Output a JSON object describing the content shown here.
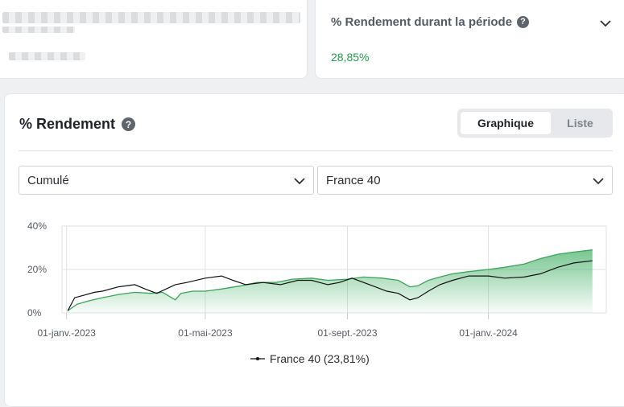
{
  "summary": {
    "title": "% Rendement durant la période",
    "value": "28,85%"
  },
  "main": {
    "title": "% Rendement",
    "tabs": [
      {
        "label": "Graphique",
        "active": true
      },
      {
        "label": "Liste",
        "active": false
      }
    ],
    "mode_select": {
      "value": "Cumulé"
    },
    "index_select": {
      "value": "France 40"
    }
  },
  "colors": {
    "accent_green": "#1e9c4b",
    "portfolio_line": "#3aa559",
    "index_line": "#111111"
  },
  "icons": {
    "help": "help-icon",
    "chevron": "chevron-down-icon"
  },
  "chart_data": {
    "type": "line",
    "y_ticks": [
      "40%",
      "20%",
      "0%"
    ],
    "ylim": [
      0,
      40
    ],
    "x_ticks": [
      "01-janv.-2023",
      "01-mai-2023",
      "01-sept.-2023",
      "01-janv.-2024"
    ],
    "x_tick_dates": [
      "2023-01-01",
      "2023-05-01",
      "2023-09-01",
      "2024-01-01"
    ],
    "xlim": [
      "2022-12-28",
      "2024-04-12"
    ],
    "legend": "France 40 (23,81%)",
    "legend_position": "bottom",
    "grid": true,
    "series": [
      {
        "name": "",
        "style": "area",
        "points": [
          [
            "2023-01-02",
            1
          ],
          [
            "2023-01-10",
            4
          ],
          [
            "2023-01-20",
            5.5
          ],
          [
            "2023-02-01",
            7
          ],
          [
            "2023-02-15",
            8.5
          ],
          [
            "2023-03-01",
            9.5
          ],
          [
            "2023-03-15",
            9
          ],
          [
            "2023-03-25",
            9.5
          ],
          [
            "2023-04-05",
            6
          ],
          [
            "2023-04-10",
            9
          ],
          [
            "2023-04-20",
            10
          ],
          [
            "2023-05-01",
            10
          ],
          [
            "2023-05-15",
            11
          ],
          [
            "2023-06-01",
            12.5
          ],
          [
            "2023-06-15",
            14
          ],
          [
            "2023-07-01",
            14
          ],
          [
            "2023-07-15",
            15.5
          ],
          [
            "2023-08-01",
            16
          ],
          [
            "2023-08-15",
            15
          ],
          [
            "2023-09-01",
            15.5
          ],
          [
            "2023-09-15",
            16.5
          ],
          [
            "2023-10-01",
            16
          ],
          [
            "2023-10-15",
            15
          ],
          [
            "2023-10-25",
            12
          ],
          [
            "2023-11-01",
            12.5
          ],
          [
            "2023-11-10",
            15
          ],
          [
            "2023-11-20",
            16.5
          ],
          [
            "2023-12-01",
            18
          ],
          [
            "2023-12-15",
            19
          ],
          [
            "2024-01-01",
            20
          ],
          [
            "2024-01-15",
            21
          ],
          [
            "2024-02-01",
            22.5
          ],
          [
            "2024-02-15",
            25
          ],
          [
            "2024-03-01",
            27
          ],
          [
            "2024-03-15",
            28
          ],
          [
            "2024-03-31",
            29
          ]
        ]
      },
      {
        "name": "France 40",
        "style": "line",
        "points": [
          [
            "2023-01-02",
            1
          ],
          [
            "2023-01-08",
            7
          ],
          [
            "2023-01-15",
            8
          ],
          [
            "2023-01-25",
            9.5
          ],
          [
            "2023-02-01",
            10
          ],
          [
            "2023-02-15",
            12
          ],
          [
            "2023-03-01",
            13
          ],
          [
            "2023-03-10",
            11
          ],
          [
            "2023-03-20",
            9
          ],
          [
            "2023-03-28",
            11
          ],
          [
            "2023-04-05",
            13
          ],
          [
            "2023-04-15",
            14
          ],
          [
            "2023-05-01",
            16
          ],
          [
            "2023-05-15",
            17
          ],
          [
            "2023-05-25",
            15
          ],
          [
            "2023-06-05",
            13
          ],
          [
            "2023-06-20",
            14
          ],
          [
            "2023-07-05",
            13
          ],
          [
            "2023-07-20",
            15
          ],
          [
            "2023-08-01",
            15
          ],
          [
            "2023-08-15",
            13
          ],
          [
            "2023-08-25",
            14
          ],
          [
            "2023-09-05",
            16
          ],
          [
            "2023-09-15",
            14
          ],
          [
            "2023-09-25",
            12
          ],
          [
            "2023-10-05",
            10
          ],
          [
            "2023-10-15",
            9
          ],
          [
            "2023-10-25",
            6
          ],
          [
            "2023-11-01",
            7
          ],
          [
            "2023-11-10",
            10
          ],
          [
            "2023-11-20",
            13
          ],
          [
            "2023-12-01",
            15
          ],
          [
            "2023-12-15",
            17
          ],
          [
            "2024-01-01",
            17
          ],
          [
            "2024-01-15",
            16
          ],
          [
            "2024-02-01",
            16.5
          ],
          [
            "2024-02-15",
            18
          ],
          [
            "2024-03-01",
            21
          ],
          [
            "2024-03-15",
            23
          ],
          [
            "2024-03-31",
            24
          ]
        ]
      }
    ]
  }
}
